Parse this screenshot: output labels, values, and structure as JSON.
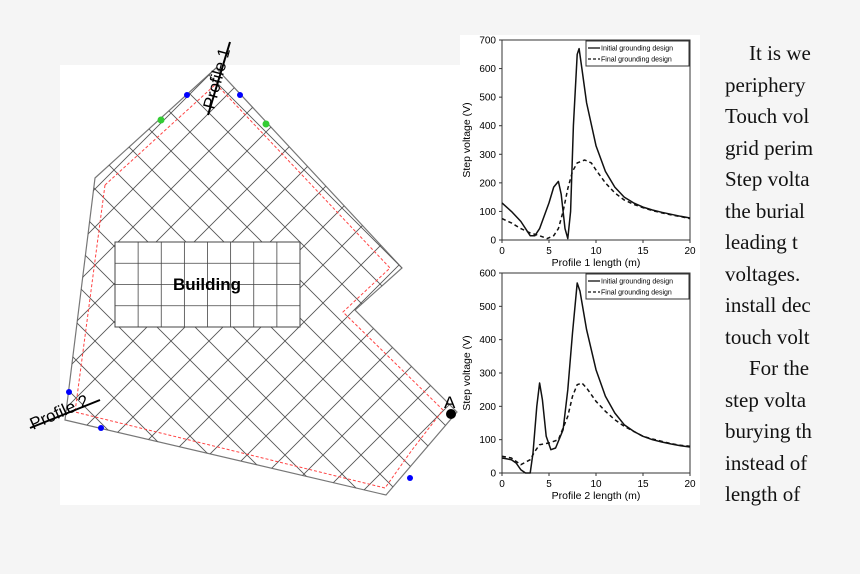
{
  "diagram": {
    "building_label": "Building",
    "profile1_label": "Profile 1",
    "profile2_label": "Profile 2",
    "point_label": "A"
  },
  "text_lines": [
    {
      "text": "It is we",
      "indent": true
    },
    {
      "text": "periphery"
    },
    {
      "text": "Touch vol"
    },
    {
      "text": "grid perim"
    },
    {
      "text": "Step volta"
    },
    {
      "text": "the burial"
    },
    {
      "text": "leading  t"
    },
    {
      "text": "voltages. "
    },
    {
      "text": "install dec"
    },
    {
      "text": "touch volt"
    },
    {
      "text": "For the",
      "indent": true
    },
    {
      "text": "step volta"
    },
    {
      "text": "burying th"
    },
    {
      "text": "instead of"
    },
    {
      "text": "length of"
    }
  ],
  "chart_data": [
    {
      "type": "line",
      "xlabel": "Profile 1 length (m)",
      "ylabel": "Step voltage (V)",
      "xlim": [
        0,
        20
      ],
      "ylim": [
        0,
        700
      ],
      "xticks": [
        0,
        5,
        10,
        15,
        20
      ],
      "yticks": [
        0,
        100,
        200,
        300,
        400,
        500,
        600,
        700
      ],
      "legend": "top-right",
      "grid": false,
      "series": [
        {
          "name": "Initial grounding design",
          "style": "solid",
          "x": [
            0,
            1,
            2,
            3,
            3.5,
            4,
            5,
            5.5,
            6,
            6.3,
            6.7,
            7,
            7.3,
            7.6,
            8,
            8.2,
            8.5,
            9,
            10,
            11,
            12,
            13,
            14,
            15,
            16,
            17,
            18,
            19,
            20
          ],
          "y": [
            130,
            100,
            65,
            15,
            15,
            40,
            130,
            185,
            205,
            160,
            40,
            5,
            100,
            400,
            650,
            670,
            600,
            480,
            330,
            240,
            185,
            150,
            130,
            115,
            105,
            97,
            90,
            83,
            77
          ]
        },
        {
          "name": "Final grounding design",
          "style": "dashed",
          "x": [
            0,
            1,
            2,
            3,
            4,
            4.8,
            5.5,
            6,
            6.5,
            7,
            7.5,
            8,
            8.8,
            9.5,
            10,
            11,
            12,
            13,
            14,
            15,
            16,
            17,
            18,
            19,
            20
          ],
          "y": [
            75,
            60,
            40,
            25,
            15,
            5,
            15,
            40,
            100,
            180,
            240,
            270,
            280,
            270,
            245,
            200,
            165,
            140,
            125,
            113,
            103,
            95,
            88,
            82,
            75
          ]
        }
      ]
    },
    {
      "type": "line",
      "xlabel": "Profile 2 length (m)",
      "ylabel": "Step voltage (V)",
      "xlim": [
        0,
        20
      ],
      "ylim": [
        0,
        600
      ],
      "xticks": [
        0,
        5,
        10,
        15,
        20
      ],
      "yticks": [
        0,
        100,
        200,
        300,
        400,
        500,
        600
      ],
      "legend": "top-right",
      "grid": false,
      "series": [
        {
          "name": "Initial grounding design",
          "style": "solid",
          "x": [
            0,
            1,
            1.5,
            2,
            2.5,
            3,
            3.3,
            3.7,
            4,
            4.3,
            4.7,
            5.2,
            5.7,
            6.5,
            7,
            7.5,
            8,
            8.3,
            9,
            10,
            11,
            12,
            13,
            14,
            15,
            16,
            17,
            18,
            19,
            20
          ],
          "y": [
            45,
            40,
            30,
            10,
            0,
            0,
            60,
            200,
            270,
            220,
            110,
            70,
            75,
            130,
            250,
            420,
            570,
            545,
            430,
            310,
            230,
            180,
            145,
            125,
            110,
            100,
            93,
            87,
            82,
            78
          ]
        },
        {
          "name": "Final grounding design",
          "style": "dashed",
          "x": [
            0,
            1,
            2,
            3,
            3.5,
            4,
            5,
            6,
            7,
            7.5,
            8,
            8.5,
            9,
            10,
            11,
            12,
            13,
            14,
            15,
            16,
            17,
            18,
            19,
            20
          ],
          "y": [
            50,
            45,
            25,
            40,
            65,
            85,
            90,
            100,
            170,
            230,
            265,
            270,
            255,
            215,
            185,
            160,
            140,
            125,
            110,
            102,
            95,
            88,
            83,
            80
          ]
        }
      ]
    }
  ]
}
